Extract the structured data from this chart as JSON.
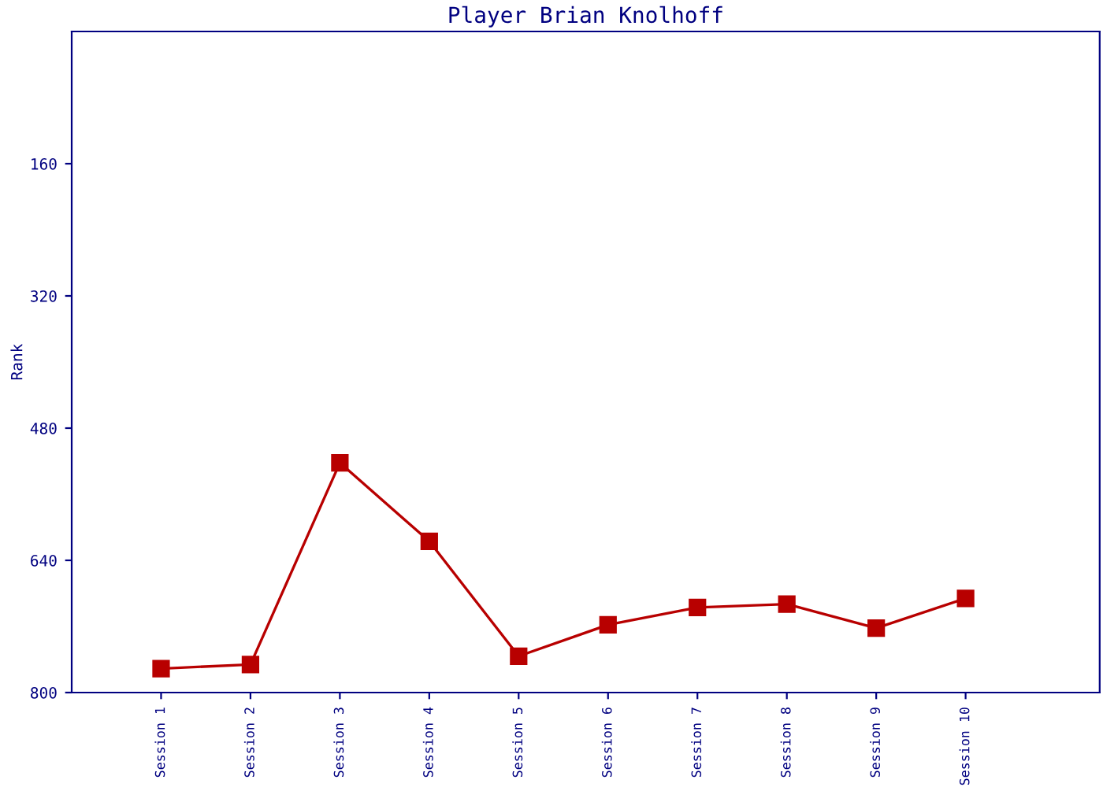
{
  "chart_data": {
    "type": "line",
    "title": "Player Brian Knolhoff",
    "ylabel": "Rank",
    "categories": [
      "Session 1",
      "Session 2",
      "Session 3",
      "Session 4",
      "Session 5",
      "Session 6",
      "Session 7",
      "Session 8",
      "Session 9",
      "Session 10"
    ],
    "series": [
      {
        "color": "#b80000",
        "values": [
          771,
          766,
          522,
          617,
          756,
          718,
          697,
          693,
          722,
          686
        ]
      }
    ],
    "ylim": [
      800,
      0
    ],
    "yticks": [
      160,
      320,
      480,
      640,
      800
    ],
    "grid": false,
    "marker": "square",
    "line_style": "solid"
  }
}
